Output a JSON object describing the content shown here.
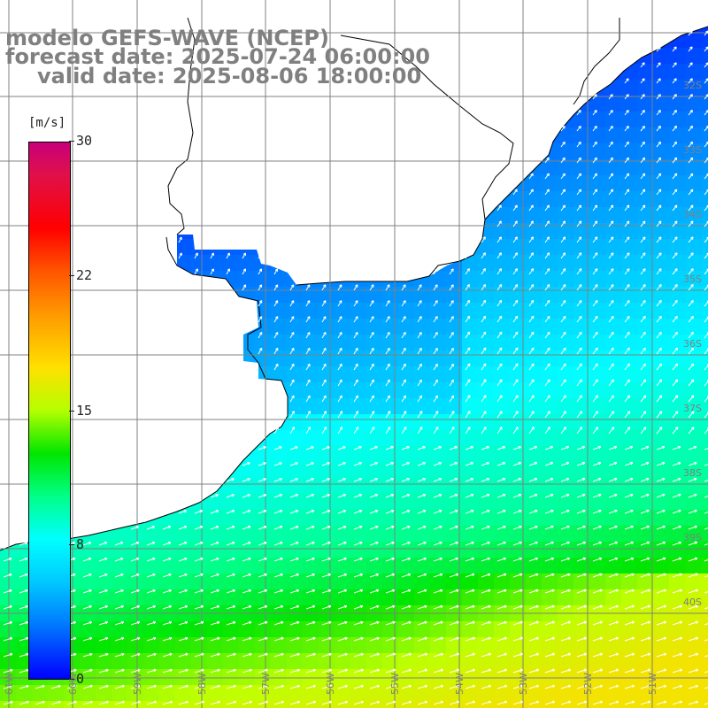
{
  "title": {
    "model": "modelo GEFS-WAVE (NCEP)",
    "forecast": "forecast date: 2025-07-24 06:00:00",
    "valid": "valid date: 2025-08-06 18:00:00"
  },
  "legend": {
    "unit": "[m/s]",
    "ticks": [
      "30",
      "22",
      "15",
      "8",
      "0"
    ],
    "colors": [
      "#c8007a",
      "#ff0000",
      "#ff9900",
      "#ffe000",
      "#00e600",
      "#00ffff",
      "#0078ff",
      "#0000ff"
    ]
  },
  "map": {
    "lat_labels": [
      "32S",
      "33S",
      "34S",
      "35S",
      "36S",
      "37S",
      "38S",
      "39S",
      "40S"
    ],
    "lon_labels": [
      "61W",
      "60W",
      "59W",
      "58W",
      "57W",
      "56W",
      "55W",
      "54W",
      "53W",
      "52W",
      "51W"
    ],
    "land_color": "#ffffff",
    "grid_color": "#808080",
    "coast_color": "#000000",
    "arrow_color": "#ffffff"
  }
}
